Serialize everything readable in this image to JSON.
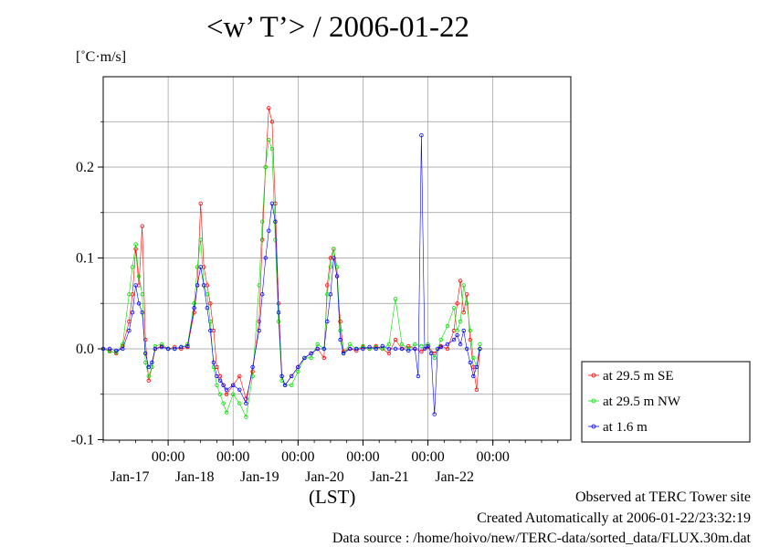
{
  "chart_data": {
    "type": "line",
    "title": "<w’ T’> / 2006-01-22",
    "ylabel": "[˚C·m/s]",
    "xlabel": "(LST)",
    "ylim": [
      -0.1,
      0.3
    ],
    "xlim": [
      0,
      144
    ],
    "y_ticks": [
      {
        "value": 0.2,
        "label": "0.2"
      },
      {
        "value": 0.1,
        "label": "0.1"
      },
      {
        "value": 0.0,
        "label": "0.0"
      },
      {
        "value": -0.1,
        "label": "-0.1"
      }
    ],
    "x_ticks": [
      {
        "value": 20,
        "time": "00:00",
        "day": "Jan-17"
      },
      {
        "value": 40,
        "time": "00:00",
        "day": "Jan-18"
      },
      {
        "value": 60,
        "time": "00:00",
        "day": "Jan-19"
      },
      {
        "value": 80,
        "time": "00:00",
        "day": "Jan-20"
      },
      {
        "value": 100,
        "time": "00:00",
        "day": "Jan-21"
      },
      {
        "value": 120,
        "time": "00:00",
        "day": "Jan-22"
      }
    ],
    "grid": true,
    "legend_position": "right-bottom",
    "series": [
      {
        "name": "at 29.5 m SE",
        "color": "#ff0000",
        "points": [
          [
            0,
            0.0
          ],
          [
            2,
            -0.002
          ],
          [
            4,
            -0.005
          ],
          [
            6,
            0.003
          ],
          [
            8,
            0.03
          ],
          [
            9,
            0.06
          ],
          [
            10,
            0.11
          ],
          [
            11,
            0.07
          ],
          [
            12,
            0.135
          ],
          [
            13,
            0.01
          ],
          [
            14,
            -0.035
          ],
          [
            15,
            -0.02
          ],
          [
            16,
            0.0
          ],
          [
            18,
            0.003
          ],
          [
            20,
            0.0
          ],
          [
            22,
            0.002
          ],
          [
            24,
            0.0
          ],
          [
            26,
            0.002
          ],
          [
            28,
            0.04
          ],
          [
            29,
            0.07
          ],
          [
            30,
            0.16
          ],
          [
            31,
            0.09
          ],
          [
            32,
            0.07
          ],
          [
            33,
            0.05
          ],
          [
            34,
            0.02
          ],
          [
            35,
            -0.02
          ],
          [
            36,
            -0.03
          ],
          [
            37,
            -0.04
          ],
          [
            38,
            -0.05
          ],
          [
            40,
            -0.04
          ],
          [
            42,
            -0.03
          ],
          [
            44,
            -0.055
          ],
          [
            46,
            -0.025
          ],
          [
            48,
            0.03
          ],
          [
            49,
            0.12
          ],
          [
            50,
            0.2
          ],
          [
            51,
            0.265
          ],
          [
            52,
            0.25
          ],
          [
            53,
            0.16
          ],
          [
            54,
            0.05
          ],
          [
            55,
            -0.03
          ],
          [
            56,
            -0.04
          ],
          [
            58,
            -0.03
          ],
          [
            60,
            -0.02
          ],
          [
            62,
            -0.01
          ],
          [
            64,
            -0.005
          ],
          [
            66,
            0.0
          ],
          [
            68,
            -0.01
          ],
          [
            69,
            0.07
          ],
          [
            70,
            0.1
          ],
          [
            71,
            0.11
          ],
          [
            72,
            0.08
          ],
          [
            73,
            0.03
          ],
          [
            74,
            -0.003
          ],
          [
            76,
            0.0
          ],
          [
            78,
            -0.002
          ],
          [
            80,
            0.002
          ],
          [
            82,
            0.0
          ],
          [
            84,
            0.003
          ],
          [
            86,
            0.0
          ],
          [
            88,
            -0.005
          ],
          [
            90,
            0.01
          ],
          [
            92,
            0.0
          ],
          [
            94,
            0.003
          ],
          [
            96,
            0.0
          ],
          [
            98,
            -0.003
          ],
          [
            100,
            0.002
          ],
          [
            102,
            -0.005
          ],
          [
            104,
            0.003
          ],
          [
            106,
            0.0
          ],
          [
            108,
            0.02
          ],
          [
            109,
            0.05
          ],
          [
            110,
            0.075
          ],
          [
            111,
            0.04
          ],
          [
            112,
            0.06
          ],
          [
            113,
            0.01
          ],
          [
            114,
            -0.02
          ],
          [
            115,
            -0.045
          ],
          [
            116,
            0.0
          ]
        ]
      },
      {
        "name": "at 29.5 m NW",
        "color": "#00e000",
        "points": [
          [
            0,
            0.0
          ],
          [
            2,
            -0.003
          ],
          [
            4,
            -0.004
          ],
          [
            6,
            0.005
          ],
          [
            8,
            0.06
          ],
          [
            9,
            0.09
          ],
          [
            10,
            0.115
          ],
          [
            11,
            0.08
          ],
          [
            12,
            0.06
          ],
          [
            13,
            -0.015
          ],
          [
            14,
            -0.03
          ],
          [
            15,
            -0.02
          ],
          [
            16,
            0.003
          ],
          [
            18,
            0.005
          ],
          [
            20,
            0.0
          ],
          [
            22,
            0.0
          ],
          [
            24,
            0.002
          ],
          [
            26,
            0.005
          ],
          [
            28,
            0.05
          ],
          [
            29,
            0.09
          ],
          [
            30,
            0.12
          ],
          [
            31,
            0.07
          ],
          [
            32,
            0.06
          ],
          [
            33,
            0.03
          ],
          [
            34,
            -0.02
          ],
          [
            35,
            -0.04
          ],
          [
            36,
            -0.05
          ],
          [
            37,
            -0.06
          ],
          [
            38,
            -0.07
          ],
          [
            40,
            -0.05
          ],
          [
            42,
            -0.06
          ],
          [
            44,
            -0.075
          ],
          [
            46,
            -0.03
          ],
          [
            48,
            0.07
          ],
          [
            49,
            0.14
          ],
          [
            50,
            0.2
          ],
          [
            51,
            0.23
          ],
          [
            52,
            0.22
          ],
          [
            53,
            0.12
          ],
          [
            54,
            0.03
          ],
          [
            55,
            -0.035
          ],
          [
            56,
            -0.04
          ],
          [
            58,
            -0.04
          ],
          [
            60,
            -0.025
          ],
          [
            62,
            -0.01
          ],
          [
            64,
            -0.01
          ],
          [
            66,
            0.005
          ],
          [
            68,
            0.0
          ],
          [
            69,
            0.06
          ],
          [
            70,
            0.09
          ],
          [
            71,
            0.11
          ],
          [
            72,
            0.09
          ],
          [
            73,
            0.02
          ],
          [
            74,
            -0.005
          ],
          [
            76,
            0.005
          ],
          [
            78,
            0.0
          ],
          [
            80,
            0.003
          ],
          [
            82,
            0.0
          ],
          [
            84,
            0.002
          ],
          [
            86,
            0.0
          ],
          [
            88,
            0.005
          ],
          [
            90,
            0.055
          ],
          [
            92,
            0.005
          ],
          [
            94,
            0.0
          ],
          [
            96,
            0.005
          ],
          [
            98,
            0.003
          ],
          [
            100,
            0.005
          ],
          [
            102,
            -0.01
          ],
          [
            104,
            0.01
          ],
          [
            106,
            0.025
          ],
          [
            108,
            0.045
          ],
          [
            109,
            0.02
          ],
          [
            110,
            0.03
          ],
          [
            111,
            0.07
          ],
          [
            112,
            0.05
          ],
          [
            113,
            0.02
          ],
          [
            114,
            -0.01
          ],
          [
            115,
            -0.02
          ],
          [
            116,
            0.005
          ]
        ]
      },
      {
        "name": "at 1.6 m",
        "color": "#0000ff",
        "points": [
          [
            0,
            0.0
          ],
          [
            2,
            0.0
          ],
          [
            4,
            -0.002
          ],
          [
            6,
            0.0
          ],
          [
            8,
            0.02
          ],
          [
            9,
            0.04
          ],
          [
            10,
            0.07
          ],
          [
            11,
            0.05
          ],
          [
            12,
            0.04
          ],
          [
            13,
            -0.005
          ],
          [
            14,
            -0.02
          ],
          [
            15,
            -0.015
          ],
          [
            16,
            0.0
          ],
          [
            18,
            0.002
          ],
          [
            20,
            0.0
          ],
          [
            22,
            0.0
          ],
          [
            24,
            0.002
          ],
          [
            26,
            0.003
          ],
          [
            28,
            0.045
          ],
          [
            29,
            0.07
          ],
          [
            30,
            0.09
          ],
          [
            31,
            0.07
          ],
          [
            32,
            0.045
          ],
          [
            33,
            0.02
          ],
          [
            34,
            -0.015
          ],
          [
            35,
            -0.03
          ],
          [
            36,
            -0.035
          ],
          [
            37,
            -0.04
          ],
          [
            38,
            -0.045
          ],
          [
            40,
            -0.04
          ],
          [
            42,
            -0.045
          ],
          [
            44,
            -0.06
          ],
          [
            46,
            -0.02
          ],
          [
            48,
            0.02
          ],
          [
            49,
            0.06
          ],
          [
            50,
            0.1
          ],
          [
            51,
            0.13
          ],
          [
            52,
            0.16
          ],
          [
            53,
            0.14
          ],
          [
            54,
            0.04
          ],
          [
            55,
            -0.03
          ],
          [
            56,
            -0.04
          ],
          [
            58,
            -0.03
          ],
          [
            60,
            -0.02
          ],
          [
            62,
            -0.01
          ],
          [
            64,
            -0.005
          ],
          [
            66,
            0.0
          ],
          [
            68,
            0.0
          ],
          [
            69,
            0.03
          ],
          [
            70,
            0.06
          ],
          [
            71,
            0.1
          ],
          [
            72,
            0.08
          ],
          [
            73,
            0.01
          ],
          [
            74,
            -0.005
          ],
          [
            76,
            0.0
          ],
          [
            78,
            0.0
          ],
          [
            80,
            0.0
          ],
          [
            82,
            0.002
          ],
          [
            84,
            0.0
          ],
          [
            86,
            0.003
          ],
          [
            88,
            0.0
          ],
          [
            90,
            0.0
          ],
          [
            92,
            0.0
          ],
          [
            94,
            -0.002
          ],
          [
            96,
            0.0
          ],
          [
            97,
            -0.03
          ],
          [
            98,
            0.235
          ],
          [
            99,
            0.0
          ],
          [
            100,
            0.003
          ],
          [
            101,
            -0.005
          ],
          [
            102,
            -0.072
          ],
          [
            103,
            0.0
          ],
          [
            104,
            0.002
          ],
          [
            106,
            0.005
          ],
          [
            108,
            0.01
          ],
          [
            109,
            0.015
          ],
          [
            110,
            0.005
          ],
          [
            111,
            0.02
          ],
          [
            112,
            0.0
          ],
          [
            113,
            -0.015
          ],
          [
            114,
            -0.03
          ],
          [
            115,
            -0.02
          ],
          [
            116,
            0.0
          ]
        ]
      }
    ]
  },
  "footer": {
    "line1": "Observed at TERC Tower site",
    "line2": "Created Automatically at 2006-01-22/23:32:19",
    "line3": "Data source : /home/hoivo/new/TERC-data/sorted_data/FLUX.30m.dat"
  }
}
